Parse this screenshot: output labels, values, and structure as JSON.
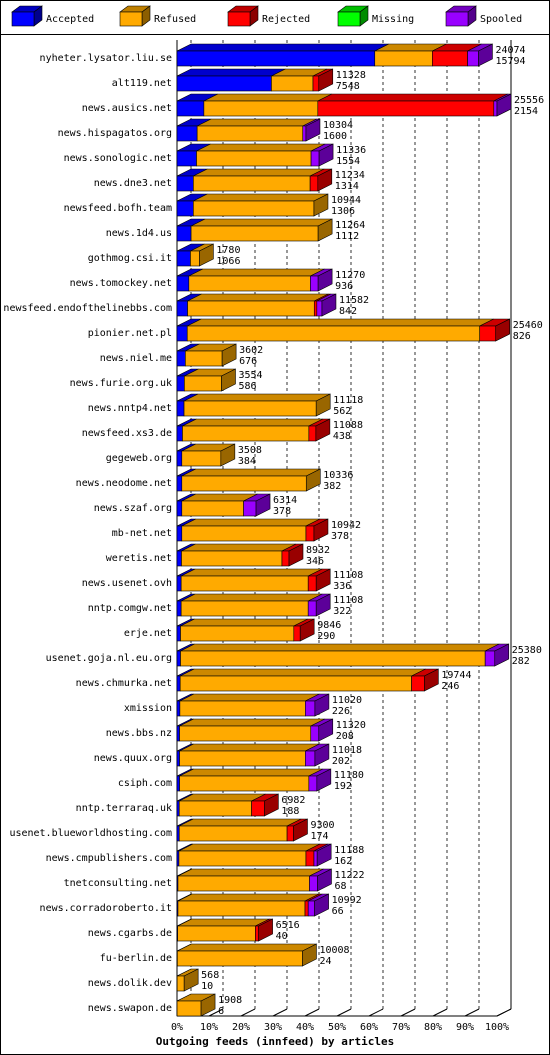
{
  "chart_data": {
    "type": "bar",
    "orientation": "horizontal",
    "stacked": true,
    "title": "Outgoing feeds (innfeed) by articles",
    "categories": [
      "nyheter.lysator.liu.se",
      "alt119.net",
      "news.ausics.net",
      "news.hispagatos.org",
      "news.sonologic.net",
      "news.dne3.net",
      "newsfeed.bofh.team",
      "news.1d4.us",
      "gothmog.csi.it",
      "news.tomockey.net",
      "newsfeed.endofthelinebbs.com",
      "pionier.net.pl",
      "news.niel.me",
      "news.furie.org.uk",
      "news.nntp4.net",
      "newsfeed.xs3.de",
      "gegeweb.org",
      "news.neodome.net",
      "news.szaf.org",
      "mb-net.net",
      "weretis.net",
      "news.usenet.ovh",
      "nntp.comgw.net",
      "erje.net",
      "usenet.goja.nl.eu.org",
      "news.chmurka.net",
      "xmission",
      "news.bbs.nz",
      "news.quux.org",
      "csiph.com",
      "nntp.terraraq.uk",
      "usenet.blueworldhosting.com",
      "news.cmpublishers.com",
      "tnetconsulting.net",
      "news.corradoroberto.it",
      "news.cgarbs.de",
      "fu-berlin.de",
      "news.dolik.dev",
      "news.swapon.de"
    ],
    "series": [
      {
        "name": "Accepted",
        "color": "#0000ff",
        "values": [
          61.8,
          29.5,
          8.4,
          6.3,
          6.1,
          5.1,
          5.1,
          4.4,
          4.2,
          3.7,
          3.3,
          3.2,
          2.6,
          2.3,
          2.2,
          1.7,
          1.5,
          1.5,
          1.5,
          1.5,
          1.4,
          1.3,
          1.3,
          1.1,
          1.1,
          1.0,
          0.9,
          0.8,
          0.8,
          0.8,
          0.7,
          0.7,
          0.6,
          0.3,
          0.3,
          0.2,
          0.1,
          0.04,
          0.02
        ]
      },
      {
        "name": "Refused",
        "color": "#ffaa00",
        "values": [
          18,
          13,
          35.6,
          33,
          35.8,
          36.5,
          37.7,
          39.7,
          2.8,
          38,
          39.6,
          91.4,
          11.5,
          11.6,
          41.3,
          39.5,
          12.2,
          38.9,
          19.3,
          38.8,
          31.4,
          39.7,
          39.7,
          35.4,
          95.2,
          72.3,
          39.2,
          41,
          39.3,
          40.4,
          22.6,
          33.7,
          39.7,
          41.1,
          39.7,
          24.3,
          39.1,
          2.2,
          7.5
        ]
      },
      {
        "name": "Rejected",
        "color": "#ff0000",
        "values": [
          11,
          1.8,
          55,
          0,
          0,
          2.4,
          0,
          0,
          0,
          0,
          0.8,
          5,
          0,
          0,
          0,
          2.2,
          0,
          0,
          0,
          2.5,
          2.2,
          2.5,
          0,
          2,
          0,
          4,
          0,
          0,
          0,
          0,
          4,
          2,
          2.5,
          0,
          1,
          1,
          0,
          0,
          0
        ]
      },
      {
        "name": "Missing",
        "color": "#00ff00",
        "values": [
          0,
          0,
          0,
          0,
          0,
          0,
          0,
          0,
          0,
          0,
          0,
          0,
          0,
          0,
          0,
          0,
          0,
          0,
          0,
          0,
          0,
          0,
          0,
          0,
          0,
          0,
          0,
          0,
          0,
          0,
          0,
          0,
          0,
          0,
          0,
          0,
          0,
          0,
          0
        ]
      },
      {
        "name": "Spooled",
        "color": "#9900ff",
        "values": [
          3.4,
          0,
          1,
          1,
          2.5,
          0,
          0,
          0,
          0,
          2.4,
          1.6,
          0,
          0,
          0,
          0,
          0,
          0,
          0,
          3.9,
          0,
          0,
          0,
          2.5,
          0,
          3,
          0,
          3,
          2.5,
          3,
          2.5,
          0,
          0,
          1,
          2.5,
          2,
          0,
          0,
          0,
          0
        ]
      }
    ],
    "annotations": [
      [
        24074,
        15794
      ],
      [
        11328,
        7548
      ],
      [
        25556,
        2154
      ],
      [
        10304,
        1600
      ],
      [
        11336,
        1554
      ],
      [
        11234,
        1314
      ],
      [
        10944,
        1306
      ],
      [
        11264,
        1112
      ],
      [
        1780,
        1066
      ],
      [
        11270,
        936
      ],
      [
        11582,
        842
      ],
      [
        25460,
        826
      ],
      [
        3602,
        676
      ],
      [
        3554,
        586
      ],
      [
        11118,
        562
      ],
      [
        11088,
        438
      ],
      [
        3508,
        384
      ],
      [
        10336,
        382
      ],
      [
        6314,
        378
      ],
      [
        10942,
        378
      ],
      [
        8932,
        346
      ],
      [
        11108,
        336
      ],
      [
        11108,
        322
      ],
      [
        9846,
        290
      ],
      [
        25380,
        282
      ],
      [
        19744,
        246
      ],
      [
        11020,
        226
      ],
      [
        11320,
        208
      ],
      [
        11018,
        202
      ],
      [
        11180,
        192
      ],
      [
        6982,
        188
      ],
      [
        9300,
        174
      ],
      [
        11188,
        162
      ],
      [
        11222,
        68
      ],
      [
        10992,
        66
      ],
      [
        6516,
        40
      ],
      [
        10008,
        24
      ],
      [
        568,
        10
      ],
      [
        1908,
        6
      ]
    ],
    "xlim": [
      0,
      100
    ],
    "xticks": [
      {
        "value": 0,
        "label": "0%"
      },
      {
        "value": 10,
        "label": "10%"
      },
      {
        "value": 20,
        "label": "20%"
      },
      {
        "value": 30,
        "label": "30%"
      },
      {
        "value": 40,
        "label": "40%"
      },
      {
        "value": 50,
        "label": "50%"
      },
      {
        "value": 60,
        "label": "60%"
      },
      {
        "value": 70,
        "label": "70%"
      },
      {
        "value": 80,
        "label": "80%"
      },
      {
        "value": 90,
        "label": "90%"
      },
      {
        "value": 100,
        "label": "100%"
      }
    ],
    "grid": true,
    "legend": "top"
  }
}
